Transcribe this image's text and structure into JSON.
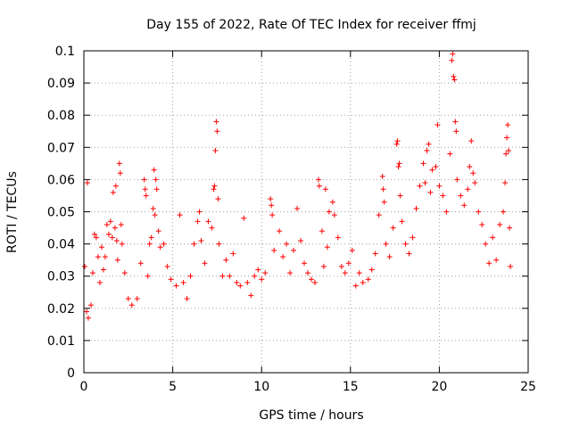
{
  "chart_data": {
    "type": "scatter",
    "title": "Day 155 of 2022, Rate Of TEC Index for receiver ffmj",
    "xlabel": "GPS time / hours",
    "ylabel": "ROTI / TECUs",
    "xlim": [
      0,
      25
    ],
    "ylim": [
      0,
      0.1
    ],
    "x_ticks": [
      "0",
      "5",
      "10",
      "15",
      "20",
      "25"
    ],
    "y_ticks": [
      "0",
      "0.01",
      "0.02",
      "0.03",
      "0.04",
      "0.05",
      "0.06",
      "0.07",
      "0.08",
      "0.09",
      "0.1"
    ],
    "grid": true,
    "marker": "+",
    "marker_color": "#ff0000",
    "series": [
      {
        "name": "",
        "points": [
          [
            0.05,
            0.033
          ],
          [
            0.15,
            0.019
          ],
          [
            0.2,
            0.059
          ],
          [
            0.25,
            0.017
          ],
          [
            0.4,
            0.021
          ],
          [
            0.5,
            0.031
          ],
          [
            0.6,
            0.043
          ],
          [
            0.7,
            0.042
          ],
          [
            0.8,
            0.036
          ],
          [
            0.9,
            0.028
          ],
          [
            1.0,
            0.039
          ],
          [
            1.1,
            0.032
          ],
          [
            1.2,
            0.036
          ],
          [
            1.3,
            0.046
          ],
          [
            1.4,
            0.043
          ],
          [
            1.5,
            0.047
          ],
          [
            1.6,
            0.042
          ],
          [
            1.65,
            0.056
          ],
          [
            1.75,
            0.045
          ],
          [
            1.8,
            0.058
          ],
          [
            1.85,
            0.041
          ],
          [
            1.9,
            0.035
          ],
          [
            2.0,
            0.065
          ],
          [
            2.05,
            0.062
          ],
          [
            2.1,
            0.046
          ],
          [
            2.15,
            0.04
          ],
          [
            2.3,
            0.031
          ],
          [
            2.5,
            0.023
          ],
          [
            2.7,
            0.021
          ],
          [
            3.0,
            0.023
          ],
          [
            3.2,
            0.034
          ],
          [
            3.4,
            0.06
          ],
          [
            3.45,
            0.057
          ],
          [
            3.5,
            0.055
          ],
          [
            3.6,
            0.03
          ],
          [
            3.7,
            0.04
          ],
          [
            3.8,
            0.042
          ],
          [
            3.9,
            0.051
          ],
          [
            3.95,
            0.063
          ],
          [
            4.0,
            0.049
          ],
          [
            4.05,
            0.06
          ],
          [
            4.1,
            0.057
          ],
          [
            4.2,
            0.044
          ],
          [
            4.3,
            0.039
          ],
          [
            4.5,
            0.04
          ],
          [
            4.7,
            0.033
          ],
          [
            4.9,
            0.029
          ],
          [
            5.2,
            0.027
          ],
          [
            5.4,
            0.049
          ],
          [
            5.6,
            0.028
          ],
          [
            5.8,
            0.023
          ],
          [
            6.0,
            0.03
          ],
          [
            6.2,
            0.04
          ],
          [
            6.4,
            0.047
          ],
          [
            6.5,
            0.05
          ],
          [
            6.6,
            0.041
          ],
          [
            6.8,
            0.034
          ],
          [
            7.0,
            0.047
          ],
          [
            7.2,
            0.045
          ],
          [
            7.3,
            0.057
          ],
          [
            7.35,
            0.058
          ],
          [
            7.4,
            0.069
          ],
          [
            7.45,
            0.078
          ],
          [
            7.5,
            0.075
          ],
          [
            7.55,
            0.054
          ],
          [
            7.6,
            0.04
          ],
          [
            7.8,
            0.03
          ],
          [
            8.0,
            0.035
          ],
          [
            8.2,
            0.03
          ],
          [
            8.4,
            0.037
          ],
          [
            8.6,
            0.028
          ],
          [
            8.8,
            0.027
          ],
          [
            9.0,
            0.048
          ],
          [
            9.2,
            0.028
          ],
          [
            9.4,
            0.024
          ],
          [
            9.6,
            0.03
          ],
          [
            9.8,
            0.032
          ],
          [
            10.0,
            0.029
          ],
          [
            10.2,
            0.031
          ],
          [
            10.5,
            0.054
          ],
          [
            10.55,
            0.052
          ],
          [
            10.6,
            0.049
          ],
          [
            10.7,
            0.038
          ],
          [
            11.0,
            0.044
          ],
          [
            11.2,
            0.036
          ],
          [
            11.4,
            0.04
          ],
          [
            11.6,
            0.031
          ],
          [
            11.8,
            0.038
          ],
          [
            12.0,
            0.051
          ],
          [
            12.2,
            0.041
          ],
          [
            12.4,
            0.034
          ],
          [
            12.6,
            0.031
          ],
          [
            12.8,
            0.029
          ],
          [
            13.0,
            0.028
          ],
          [
            13.2,
            0.06
          ],
          [
            13.25,
            0.058
          ],
          [
            13.4,
            0.044
          ],
          [
            13.5,
            0.033
          ],
          [
            13.6,
            0.057
          ],
          [
            13.7,
            0.039
          ],
          [
            13.8,
            0.05
          ],
          [
            14.0,
            0.053
          ],
          [
            14.1,
            0.049
          ],
          [
            14.3,
            0.042
          ],
          [
            14.5,
            0.033
          ],
          [
            14.7,
            0.031
          ],
          [
            14.9,
            0.034
          ],
          [
            15.1,
            0.038
          ],
          [
            15.3,
            0.027
          ],
          [
            15.5,
            0.031
          ],
          [
            15.7,
            0.028
          ],
          [
            16.0,
            0.029
          ],
          [
            16.2,
            0.032
          ],
          [
            16.4,
            0.037
          ],
          [
            16.6,
            0.049
          ],
          [
            16.8,
            0.061
          ],
          [
            16.85,
            0.057
          ],
          [
            16.9,
            0.053
          ],
          [
            17.0,
            0.04
          ],
          [
            17.2,
            0.036
          ],
          [
            17.4,
            0.045
          ],
          [
            17.6,
            0.071
          ],
          [
            17.65,
            0.072
          ],
          [
            17.7,
            0.064
          ],
          [
            17.75,
            0.065
          ],
          [
            17.8,
            0.055
          ],
          [
            17.9,
            0.047
          ],
          [
            18.1,
            0.04
          ],
          [
            18.3,
            0.037
          ],
          [
            18.5,
            0.042
          ],
          [
            18.7,
            0.051
          ],
          [
            18.9,
            0.058
          ],
          [
            19.1,
            0.065
          ],
          [
            19.2,
            0.059
          ],
          [
            19.3,
            0.069
          ],
          [
            19.4,
            0.071
          ],
          [
            19.5,
            0.056
          ],
          [
            19.6,
            0.063
          ],
          [
            19.8,
            0.064
          ],
          [
            19.9,
            0.077
          ],
          [
            20.0,
            0.058
          ],
          [
            20.2,
            0.055
          ],
          [
            20.4,
            0.05
          ],
          [
            20.6,
            0.068
          ],
          [
            20.7,
            0.097
          ],
          [
            20.75,
            0.099
          ],
          [
            20.8,
            0.092
          ],
          [
            20.85,
            0.091
          ],
          [
            20.9,
            0.078
          ],
          [
            20.95,
            0.075
          ],
          [
            21.0,
            0.06
          ],
          [
            21.2,
            0.055
          ],
          [
            21.4,
            0.052
          ],
          [
            21.6,
            0.057
          ],
          [
            21.7,
            0.064
          ],
          [
            21.8,
            0.072
          ],
          [
            21.9,
            0.062
          ],
          [
            22.0,
            0.059
          ],
          [
            22.2,
            0.05
          ],
          [
            22.4,
            0.046
          ],
          [
            22.6,
            0.04
          ],
          [
            22.8,
            0.034
          ],
          [
            23.0,
            0.042
          ],
          [
            23.2,
            0.035
          ],
          [
            23.4,
            0.046
          ],
          [
            23.6,
            0.05
          ],
          [
            23.7,
            0.059
          ],
          [
            23.75,
            0.068
          ],
          [
            23.8,
            0.073
          ],
          [
            23.85,
            0.077
          ],
          [
            23.9,
            0.069
          ],
          [
            23.95,
            0.045
          ],
          [
            24.0,
            0.033
          ]
        ]
      }
    ]
  }
}
